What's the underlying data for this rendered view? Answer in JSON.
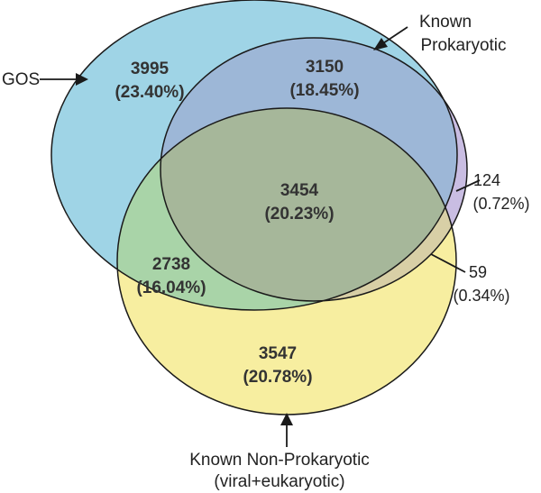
{
  "sets": {
    "gos": {
      "label": "GOS",
      "fill": "#8fcfe3"
    },
    "known_prokaryotic": {
      "label_line1": "Known",
      "label_line2": "Prokaryotic",
      "fill": "#b6a8d8"
    },
    "known_non_prokaryotic": {
      "label_line1": "Known Non-Prokaryotic",
      "label_line2": "(viral+eukaryotic)",
      "fill": "#f7eea0"
    }
  },
  "regions": {
    "gos_only": {
      "count": "3995",
      "percent": "(23.40%)"
    },
    "prok_only_with_gos": {
      "count": "3150",
      "percent": "(18.45%)"
    },
    "all_three": {
      "count": "3454",
      "percent": "(20.23%)"
    },
    "gos_nonprok": {
      "count": "2738",
      "percent": "(16.04%)"
    },
    "nonprok_only": {
      "count": "3547",
      "percent": "(20.78%)"
    },
    "prok_only": {
      "count": "124",
      "percent": "(0.72%)"
    },
    "prok_nonprok": {
      "count": "59",
      "percent": "(0.34%)"
    }
  },
  "colors": {
    "outline": "#1a1a1a",
    "text": "#333333"
  }
}
